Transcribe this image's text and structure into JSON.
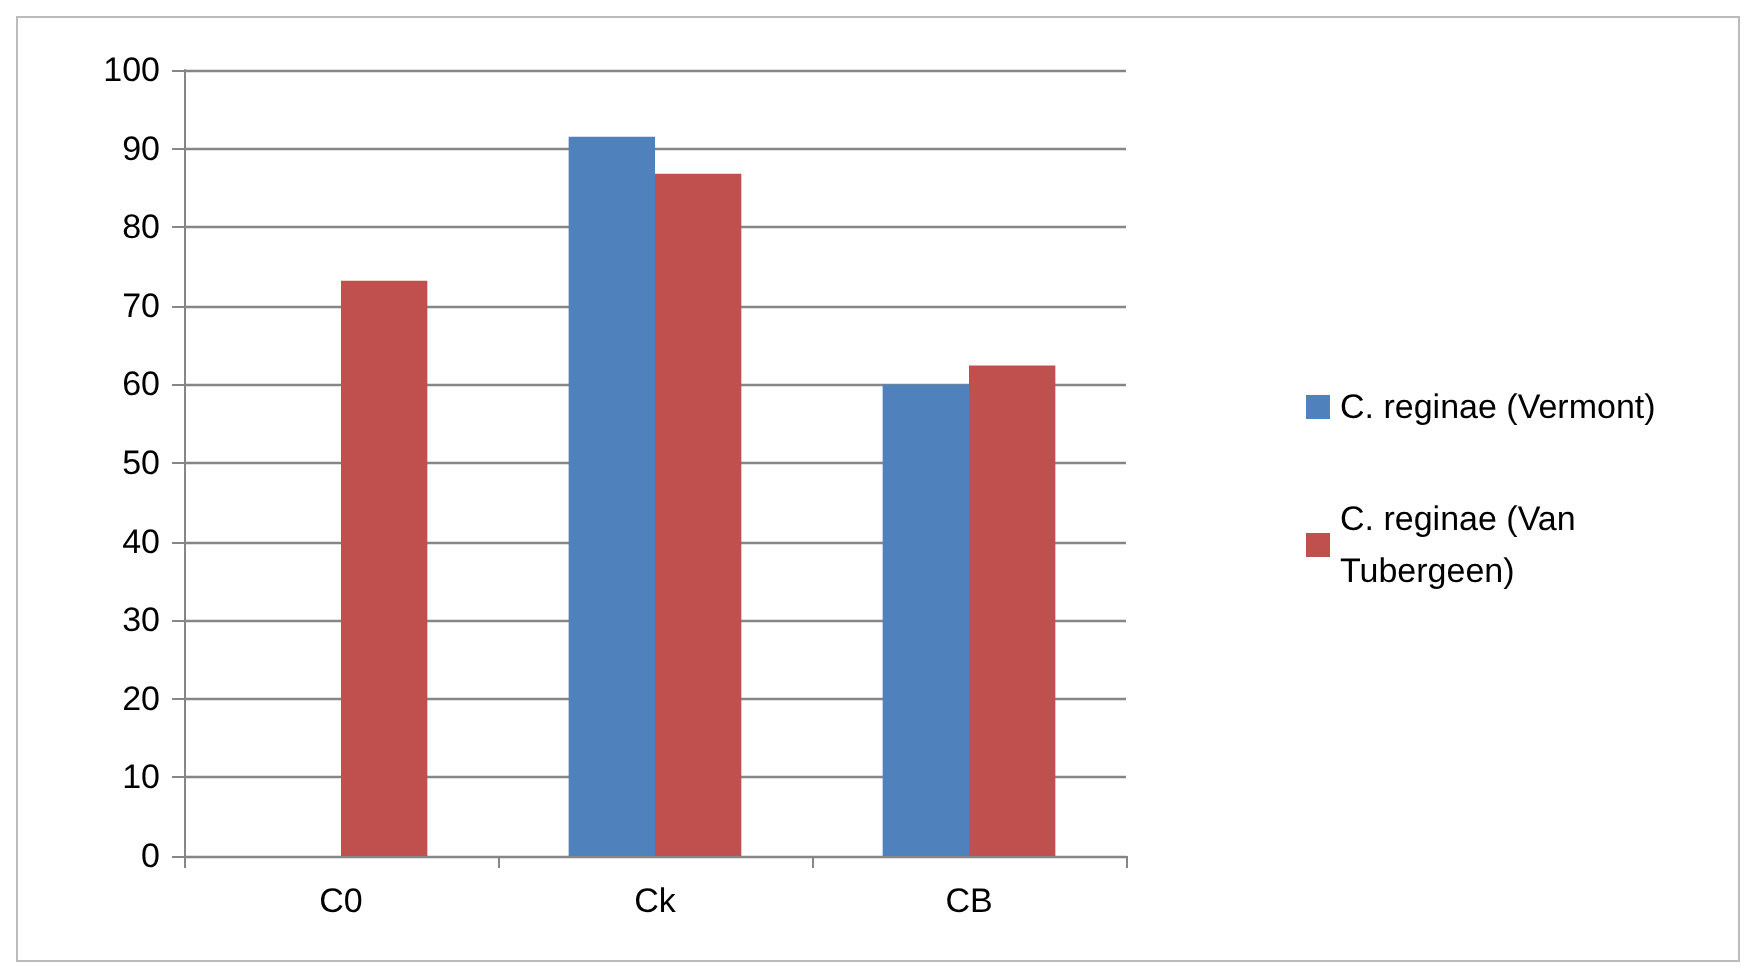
{
  "chart_data": {
    "type": "bar",
    "categories": [
      "C0",
      "Ck",
      "CB"
    ],
    "series": [
      {
        "name": "C. reginae (Vermont)",
        "color": "#4f81bd",
        "values": [
          null,
          91.5,
          60
        ]
      },
      {
        "name": "C. reginae (Van Tubergeen)",
        "color": "#c0504d",
        "values": [
          73.2,
          86.8,
          62.4
        ]
      }
    ],
    "ylim": [
      0,
      100
    ],
    "yticks": [
      0,
      10,
      20,
      30,
      40,
      50,
      60,
      70,
      80,
      90,
      100
    ],
    "grid": "y",
    "legend": "right"
  }
}
